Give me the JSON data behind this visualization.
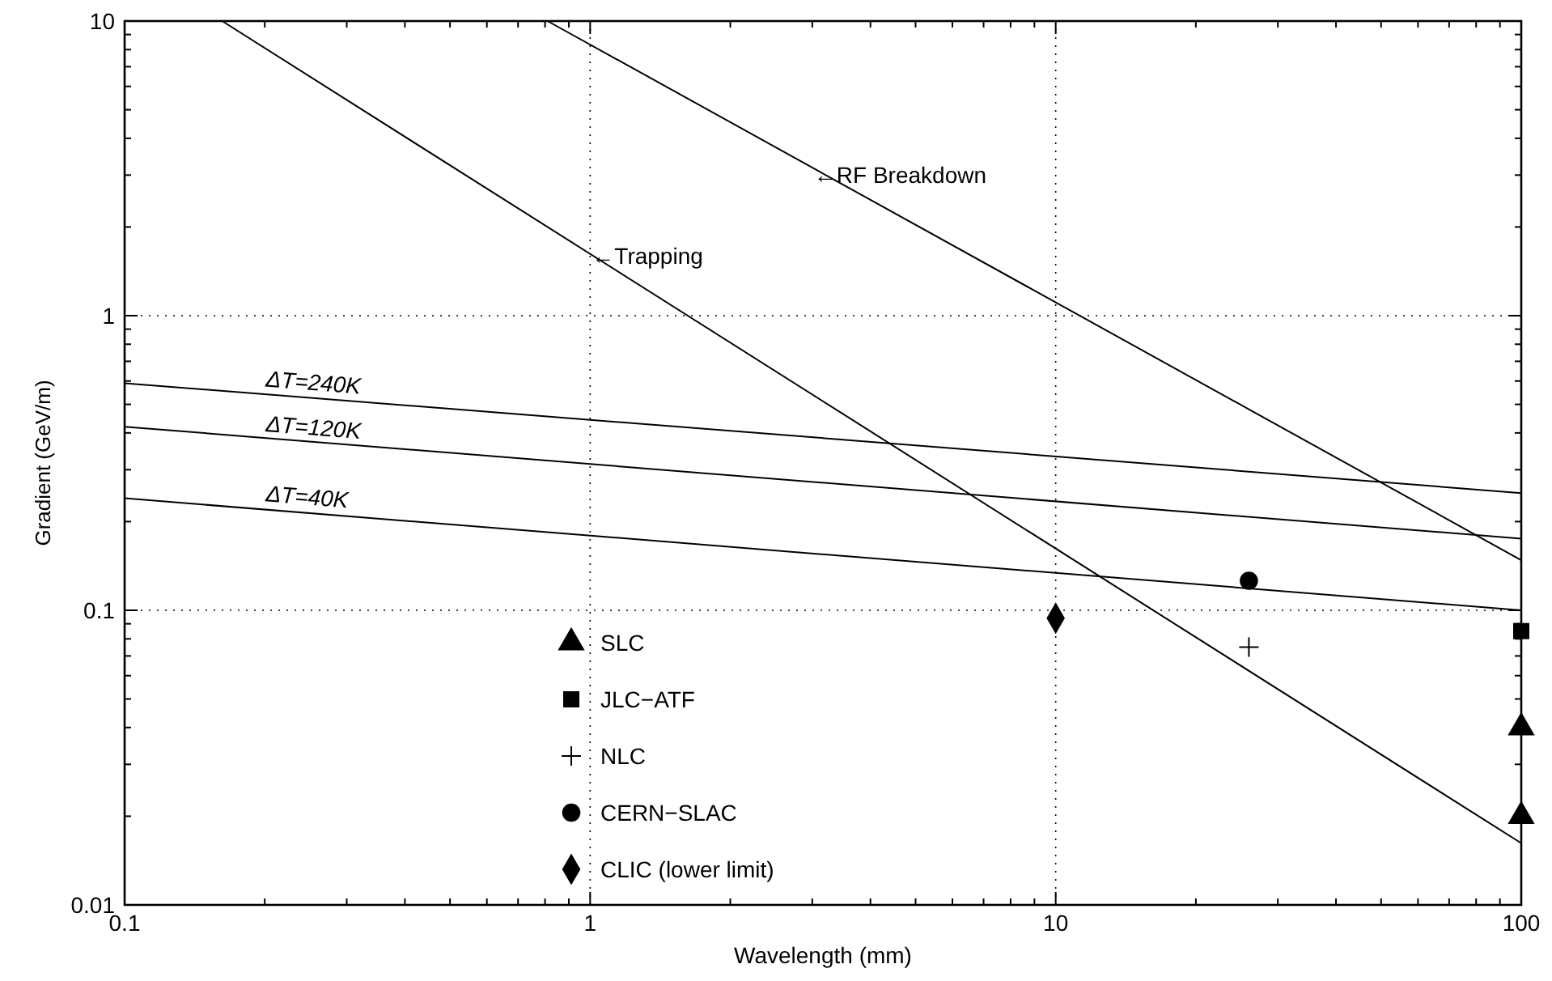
{
  "chart_data": {
    "type": "scatter",
    "xlabel": "Wavelength (mm)",
    "ylabel": "Gradient (GeV/m)",
    "log": "xy",
    "grid": true,
    "legend": "bottom",
    "xlim": [
      0.1,
      100
    ],
    "xticks": [
      0.1,
      1,
      10,
      100
    ],
    "ylim": [
      0.01,
      10
    ],
    "yticks": [
      0.01,
      0.1,
      1,
      10
    ],
    "series": [
      {
        "type": "line",
        "color": "#000000",
        "marker": "none",
        "line_style": "solid",
        "x": [
          0.81,
          100
        ],
        "values": [
          10,
          0.148
        ]
      },
      {
        "type": "line",
        "color": "#000000",
        "marker": "none",
        "line_style": "solid",
        "x": [
          0.162,
          100
        ],
        "values": [
          10,
          0.0162
        ]
      },
      {
        "type": "line",
        "color": "#000000",
        "marker": "none",
        "line_style": "solid",
        "x": [
          0.1,
          100
        ],
        "values": [
          0.59,
          0.25
        ]
      },
      {
        "type": "line",
        "color": "#000000",
        "marker": "none",
        "line_style": "solid",
        "x": [
          0.1,
          100
        ],
        "values": [
          0.42,
          0.175
        ]
      },
      {
        "type": "line",
        "color": "#000000",
        "marker": "none",
        "line_style": "solid",
        "x": [
          0.1,
          100
        ],
        "values": [
          0.24,
          0.1
        ]
      },
      {
        "name": "SLC",
        "color": "#000000",
        "marker": "triangle",
        "x": [
          100,
          100
        ],
        "values": [
          0.04,
          0.02
        ]
      },
      {
        "name": "JLC−ATF",
        "color": "#000000",
        "marker": "square",
        "x": [
          100
        ],
        "values": [
          0.085
        ]
      },
      {
        "name": "NLC",
        "color": "#000000",
        "marker": "cross",
        "x": [
          26
        ],
        "values": [
          0.075
        ]
      },
      {
        "name": "CERN−SLAC",
        "color": "#000000",
        "marker": "circle",
        "x": [
          26
        ],
        "values": [
          0.126
        ]
      },
      {
        "name": "CLIC (lower limit)",
        "color": "#000000",
        "marker": "diamond",
        "x": [
          10
        ],
        "values": [
          0.094
        ]
      }
    ],
    "annotations": [
      {
        "text": "←RF Breakdown",
        "x": 3,
        "y": 3.0
      },
      {
        "text": "←Trapping",
        "x": 1,
        "y": 1.6
      },
      {
        "text": "ΔT=240K",
        "x": 0.2,
        "y": 0.54
      },
      {
        "text": "ΔT=120K",
        "x": 0.2,
        "y": 0.38
      },
      {
        "text": "ΔT=40K",
        "x": 0.2,
        "y": 0.22
      }
    ]
  }
}
